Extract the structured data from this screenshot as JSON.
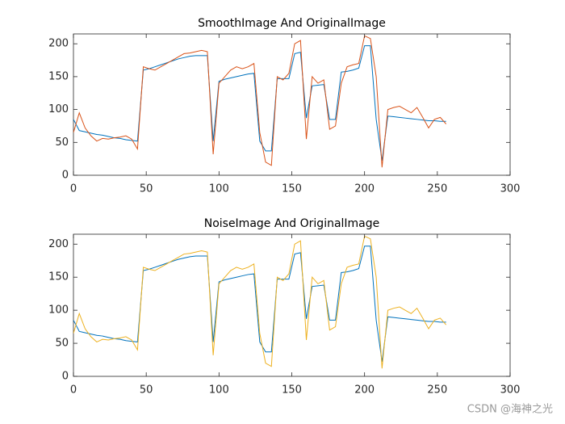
{
  "chart_data": [
    {
      "type": "line",
      "title": "SmoothImage And OriginalImage",
      "x": [
        0,
        4,
        8,
        12,
        16,
        20,
        24,
        28,
        32,
        36,
        40,
        44,
        48,
        52,
        56,
        60,
        64,
        68,
        72,
        76,
        80,
        84,
        88,
        92,
        96,
        100,
        104,
        108,
        112,
        116,
        120,
        124,
        128,
        132,
        136,
        140,
        144,
        148,
        152,
        156,
        160,
        164,
        168,
        172,
        176,
        180,
        184,
        188,
        192,
        196,
        200,
        204,
        208,
        212,
        216,
        220,
        224,
        228,
        232,
        236,
        240,
        244,
        248,
        252,
        256
      ],
      "series": [
        {
          "color": "#0072BD",
          "values": [
            85,
            68,
            66,
            64,
            62,
            61,
            59,
            57,
            56,
            54,
            53,
            52,
            160,
            162,
            165,
            168,
            171,
            174,
            177,
            179,
            181,
            182,
            182,
            182,
            52,
            143,
            146,
            148,
            150,
            152,
            154,
            155,
            52,
            37,
            37,
            147,
            147,
            147,
            185,
            187,
            87,
            136,
            137,
            138,
            85,
            85,
            157,
            158,
            160,
            163,
            197,
            197,
            85,
            22,
            90,
            89,
            88,
            87,
            86,
            85,
            84,
            83,
            83,
            82,
            82
          ]
        },
        {
          "color": "#D95319",
          "values": [
            65,
            95,
            72,
            60,
            52,
            56,
            55,
            57,
            58,
            60,
            55,
            40,
            165,
            162,
            160,
            165,
            170,
            175,
            180,
            185,
            186,
            188,
            190,
            188,
            32,
            140,
            150,
            160,
            165,
            162,
            165,
            170,
            65,
            20,
            15,
            150,
            145,
            155,
            200,
            205,
            55,
            150,
            140,
            145,
            70,
            75,
            140,
            165,
            168,
            170,
            212,
            208,
            150,
            12,
            100,
            103,
            105,
            100,
            95,
            103,
            88,
            72,
            85,
            88,
            78
          ]
        }
      ],
      "xlim": [
        0,
        300
      ],
      "xticks": [
        0,
        50,
        100,
        150,
        200,
        250,
        300
      ],
      "ylim": [
        0,
        215
      ],
      "yticks": [
        0,
        50,
        100,
        150,
        200
      ]
    },
    {
      "type": "line",
      "title": "NoiseImage And OriginalImage",
      "x": [
        0,
        4,
        8,
        12,
        16,
        20,
        24,
        28,
        32,
        36,
        40,
        44,
        48,
        52,
        56,
        60,
        64,
        68,
        72,
        76,
        80,
        84,
        88,
        92,
        96,
        100,
        104,
        108,
        112,
        116,
        120,
        124,
        128,
        132,
        136,
        140,
        144,
        148,
        152,
        156,
        160,
        164,
        168,
        172,
        176,
        180,
        184,
        188,
        192,
        196,
        200,
        204,
        208,
        212,
        216,
        220,
        224,
        228,
        232,
        236,
        240,
        244,
        248,
        252,
        256
      ],
      "series": [
        {
          "color": "#0072BD",
          "values": [
            85,
            68,
            66,
            64,
            62,
            61,
            59,
            57,
            56,
            54,
            53,
            52,
            160,
            162,
            165,
            168,
            171,
            174,
            177,
            179,
            181,
            182,
            182,
            182,
            52,
            143,
            146,
            148,
            150,
            152,
            154,
            155,
            52,
            37,
            37,
            147,
            147,
            147,
            185,
            187,
            87,
            136,
            137,
            138,
            85,
            85,
            157,
            158,
            160,
            163,
            197,
            197,
            85,
            22,
            90,
            89,
            88,
            87,
            86,
            85,
            84,
            83,
            83,
            82,
            82
          ]
        },
        {
          "color": "#EDB120",
          "values": [
            65,
            95,
            72,
            60,
            52,
            56,
            55,
            57,
            58,
            60,
            55,
            40,
            165,
            162,
            160,
            165,
            170,
            175,
            180,
            185,
            186,
            188,
            190,
            188,
            32,
            140,
            150,
            160,
            165,
            162,
            165,
            170,
            65,
            20,
            15,
            150,
            145,
            155,
            200,
            205,
            55,
            150,
            140,
            145,
            70,
            75,
            140,
            165,
            168,
            170,
            212,
            208,
            150,
            12,
            100,
            103,
            105,
            100,
            95,
            103,
            88,
            72,
            85,
            88,
            78
          ]
        }
      ],
      "xlim": [
        0,
        300
      ],
      "xticks": [
        0,
        50,
        100,
        150,
        200,
        250,
        300
      ],
      "ylim": [
        0,
        215
      ],
      "yticks": [
        0,
        50,
        100,
        150,
        200
      ]
    }
  ],
  "watermark": "CSDN @海神之光"
}
